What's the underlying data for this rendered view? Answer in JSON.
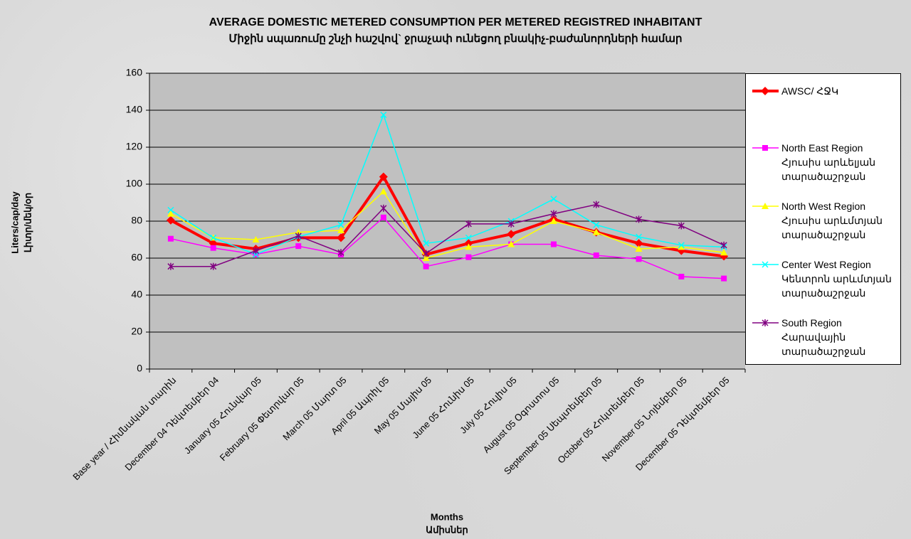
{
  "chart_data": {
    "type": "line",
    "title": "AVERAGE DOMESTIC METERED CONSUMPTION  PER METERED  REGISTRED INHABITANT",
    "subtitle": "Միջին սպառումը շնչի հաշվով` ջրաչափ ունեցող բնակիչ-բաժանորդների համար",
    "y_label": [
      "Liters/cap/day",
      "Լիտր/մեկ/օր"
    ],
    "x_label": [
      "Months",
      "Ամիսներ"
    ],
    "categories": [
      "Base year / Հիմնական տարին",
      "December 04 Դեկտեմբեր 04",
      "January 05 Հունվար 05",
      "February 05 Փետրվար 05",
      "March 05 Մարտ 05",
      "April 05 Ապրիլ 05",
      "May 05 Մայիս 05",
      "June 05 Հունիս 05",
      "July 05 Հուլիս 05",
      "August 05 Օգոստոս 05",
      "September 05 Սեպտեմբեր 05",
      "October 05 Հոկտեմբեր 05",
      "November 05 Նոյեմբեր 05",
      "December 05 Դեկտեմբեր 05"
    ],
    "ylim": [
      0,
      160
    ],
    "yticks": [
      0,
      20,
      40,
      60,
      80,
      100,
      120,
      140,
      160
    ],
    "grid": true,
    "legend": "right",
    "series": [
      {
        "name": "AWSC/ ՀՋԿ",
        "color": "#ff0000",
        "marker": "diamond",
        "width": 4,
        "values": [
          80.5,
          68,
          65,
          71,
          71,
          104,
          62,
          68,
          73,
          81,
          74,
          68,
          64,
          61
        ]
      },
      {
        "name": "North East Region\nՀյուսիս արևելյան\nտարածաշրջան",
        "color": "#ff00ff",
        "marker": "square",
        "width": 1.5,
        "values": [
          70.5,
          65.5,
          62,
          66.5,
          62,
          82,
          55.5,
          60.5,
          67.5,
          67.5,
          61.5,
          59.5,
          50,
          49
        ]
      },
      {
        "name": "North West Region\nՀյուսիս արևմտյան\nտարածաշրջան",
        "color": "#ffff00",
        "marker": "triangle",
        "width": 1.5,
        "values": [
          84,
          71,
          70,
          74,
          75,
          96,
          60,
          66,
          67.5,
          80,
          74,
          65,
          66,
          63
        ]
      },
      {
        "name": "Center West Region\nԿենտրոն արևմտյան\nտարածաշրջան",
        "color": "#00ffff",
        "marker": "x",
        "width": 1.5,
        "values": [
          86,
          71,
          62,
          71.5,
          78,
          137.5,
          68,
          71,
          80,
          92,
          78,
          71.5,
          67,
          66
        ]
      },
      {
        "name": "South Region\nՀարավային\nտարածաշրջան",
        "color": "#800080",
        "marker": "star",
        "width": 1.5,
        "values": [
          55.5,
          55.5,
          64,
          72,
          63,
          87,
          62.5,
          78.5,
          78.5,
          84,
          89,
          81,
          77.5,
          67
        ]
      }
    ]
  }
}
